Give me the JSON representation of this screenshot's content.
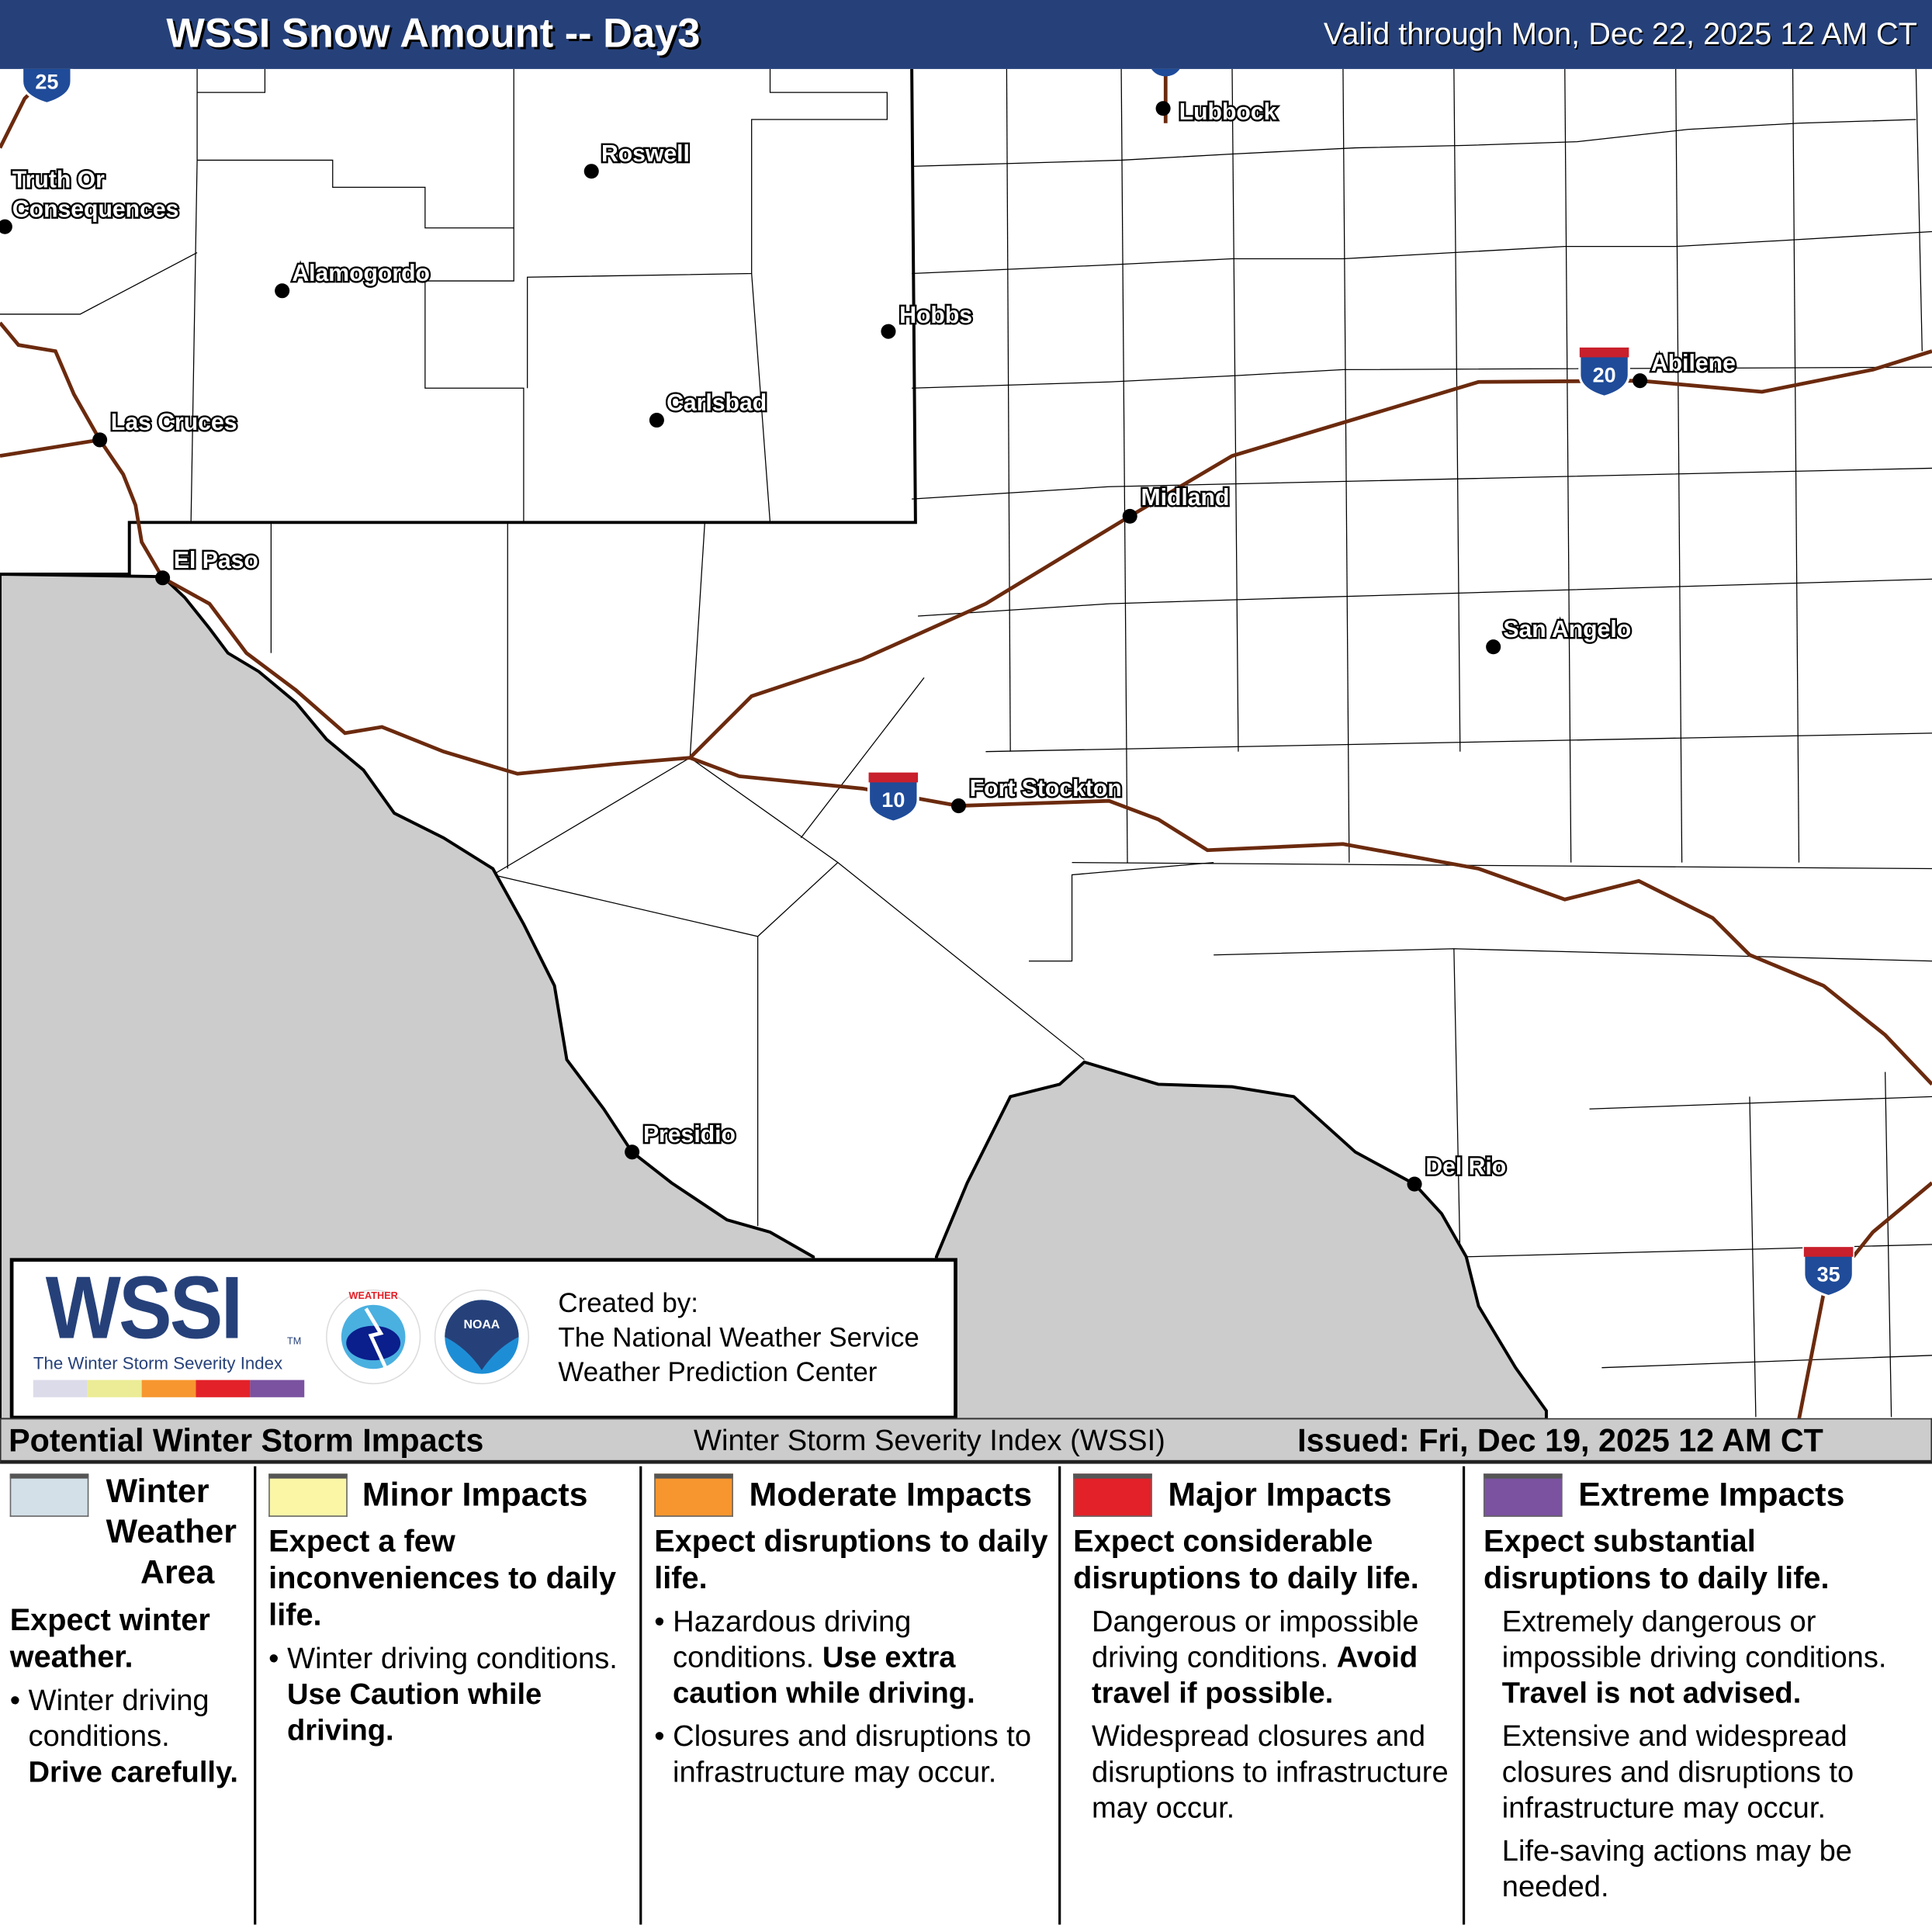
{
  "header": {
    "title": "WSSI Snow Amount -- Day3",
    "valid": "Valid through Mon, Dec 22, 2025 12 AM CT",
    "background": "#26417a"
  },
  "map": {
    "cities": [
      "Lubbock",
      "Roswell",
      "Truth Or",
      "Consequences",
      "Alamogordo",
      "Hobbs",
      "Carlsbad",
      "Las Cruces",
      "Midland",
      "El Paso",
      "Abilene",
      "San Angelo",
      "Fort Stockton",
      "Presidio",
      "Del Rio"
    ],
    "interstates": [
      "25",
      "20",
      "10",
      "35"
    ],
    "snow_category_shown": "none",
    "road_color": "#6b2a0e",
    "outside_area_color": "#cccccc"
  },
  "logo": {
    "wssi": "WSSI",
    "tm": "TM",
    "subtitle": "The Winter Storm Severity Index",
    "nws_logo": "NATIONAL WEATHER SERVICE",
    "noaa_logo": "NOAA",
    "created_by": "Created by:",
    "org1": "The National Weather Service",
    "org2": "Weather Prediction Center"
  },
  "legend_bar": {
    "left": "Potential Winter Storm Impacts",
    "center": "Winter Storm Severity Index (WSSI)",
    "issued": "Issued: Fri, Dec 19, 2025 12 AM CT"
  },
  "legend": [
    {
      "color": "#d3e0e8",
      "title1": "Winter",
      "title2": "Weather",
      "title3": "Area",
      "lead": "Expect winter weather.",
      "b1": "Winter driving conditions.",
      "b1bold": "Drive carefully."
    },
    {
      "color": "#faf6a6",
      "title": "Minor Impacts",
      "lead": "Expect a few inconveniences to daily life.",
      "b1": "Winter driving conditions.",
      "b1bold": "Use Caution while driving."
    },
    {
      "color": "#f7962f",
      "title": "Moderate Impacts",
      "lead": "Expect disruptions to daily life.",
      "b1": "Hazardous driving conditions.",
      "b1bold": "Use extra caution while driving.",
      "b2": "Closures and disruptions to infrastructure may occur."
    },
    {
      "color": "#e32128",
      "title": "Major Impacts",
      "lead": "Expect considerable disruptions to daily life.",
      "p1": "Dangerous or impossible driving conditions.",
      "p1bold": "Avoid travel if possible.",
      "p2": "Widespread closures and disruptions to infrastructure may occur."
    },
    {
      "color": "#7a52a0",
      "title": "Extreme Impacts",
      "lead": "Expect substantial disruptions to daily life.",
      "p1": "Extremely dangerous or impossible driving conditions.",
      "p1bold": "Travel is not advised.",
      "p2": "Extensive and widespread closures and disruptions to infrastructure may occur.",
      "p3": "Life-saving actions may be needed."
    }
  ]
}
